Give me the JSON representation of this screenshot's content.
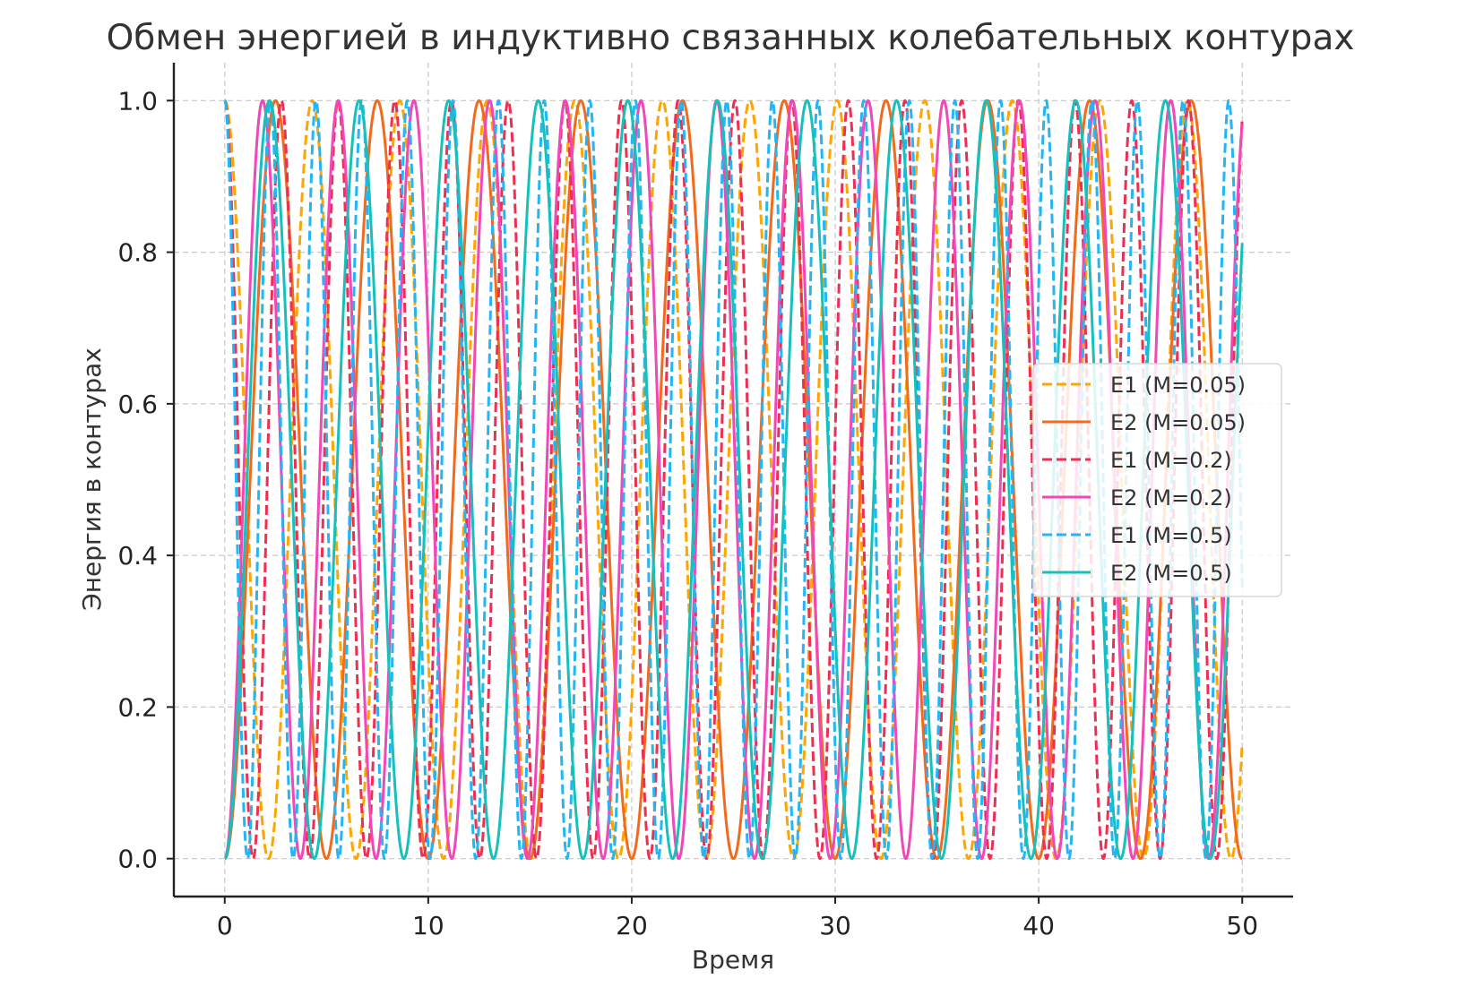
{
  "chart_data": {
    "type": "line",
    "title": "Обмен энергией в индуктивно связанных колебательных контурах",
    "xlabel": "Время",
    "ylabel": "Энергия в контурах",
    "xlim": [
      -2.5,
      52.5
    ],
    "ylim": [
      -0.05,
      1.05
    ],
    "x_ticks": [
      0,
      10,
      20,
      30,
      40,
      50
    ],
    "x_tick_labels": [
      "0",
      "10",
      "20",
      "30",
      "40",
      "50"
    ],
    "y_ticks": [
      0.0,
      0.2,
      0.4,
      0.6,
      0.8,
      1.0
    ],
    "y_tick_labels": [
      "0.0",
      "0.2",
      "0.4",
      "0.6",
      "0.8",
      "1.0"
    ],
    "grid": true,
    "legend_position": "center-right",
    "x_range": [
      0,
      50
    ],
    "series": [
      {
        "name": "E1 (M=0.05)",
        "color": "#FFA500",
        "dash": true,
        "energy": "cos^2",
        "beat_frequency": 0.7306
      },
      {
        "name": "E2 (M=0.05)",
        "color": "#F26B1D",
        "dash": false,
        "energy": "sin^2",
        "beat_frequency": 0.6284
      },
      {
        "name": "E1 (M=0.2)",
        "color": "#EE2E52",
        "dash": true,
        "energy": "cos^2",
        "beat_frequency": 1.1278
      },
      {
        "name": "E2 (M=0.2)",
        "color": "#F048B6",
        "dash": false,
        "energy": "sin^2",
        "beat_frequency": 0.8447
      },
      {
        "name": "E1 (M=0.5)",
        "color": "#23B5F5",
        "dash": true,
        "energy": "cos^2",
        "beat_frequency": 1.4009
      },
      {
        "name": "E2 (M=0.5)",
        "color": "#18C0BB",
        "dash": false,
        "energy": "sin^2",
        "beat_frequency": 0.7136
      }
    ]
  }
}
